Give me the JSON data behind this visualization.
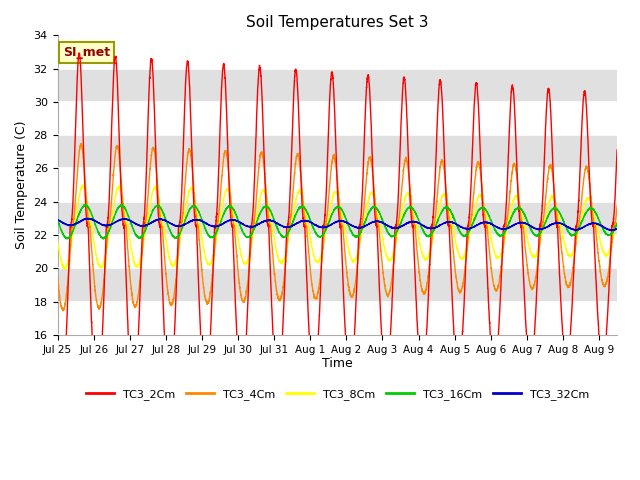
{
  "title": "Soil Temperatures Set 3",
  "xlabel": "Time",
  "ylabel": "Soil Temperature (C)",
  "ylim": [
    16,
    34
  ],
  "yticks": [
    16,
    18,
    20,
    22,
    24,
    26,
    28,
    30,
    32,
    34
  ],
  "bg_color": "#ffffff",
  "plot_bg_color": "#ffffff",
  "annotation_text": "SI_met",
  "annotation_bg": "#ffffcc",
  "annotation_border": "#999900",
  "annotation_text_color": "#990000",
  "series": {
    "TC3_2Cm": {
      "color": "#ff0000",
      "lw": 1.0
    },
    "TC3_4Cm": {
      "color": "#ff8800",
      "lw": 1.0
    },
    "TC3_8Cm": {
      "color": "#ffff00",
      "lw": 1.0
    },
    "TC3_16Cm": {
      "color": "#00cc00",
      "lw": 1.0
    },
    "TC3_32Cm": {
      "color": "#0000cc",
      "lw": 1.0
    }
  },
  "x_tick_labels": [
    "Jul 25",
    "Jul 26",
    "Jul 27",
    "Jul 28",
    "Jul 29",
    "Jul 30",
    "Jul 31",
    "Aug 1",
    "Aug 2",
    "Aug 3",
    "Aug 4",
    "Aug 5",
    "Aug 6",
    "Aug 7",
    "Aug 8",
    "Aug 9"
  ],
  "band_colors": [
    "#ffffff",
    "#e0e0e0"
  ],
  "n_days": 15.5,
  "points_per_day": 288,
  "base_temp": 22.5
}
